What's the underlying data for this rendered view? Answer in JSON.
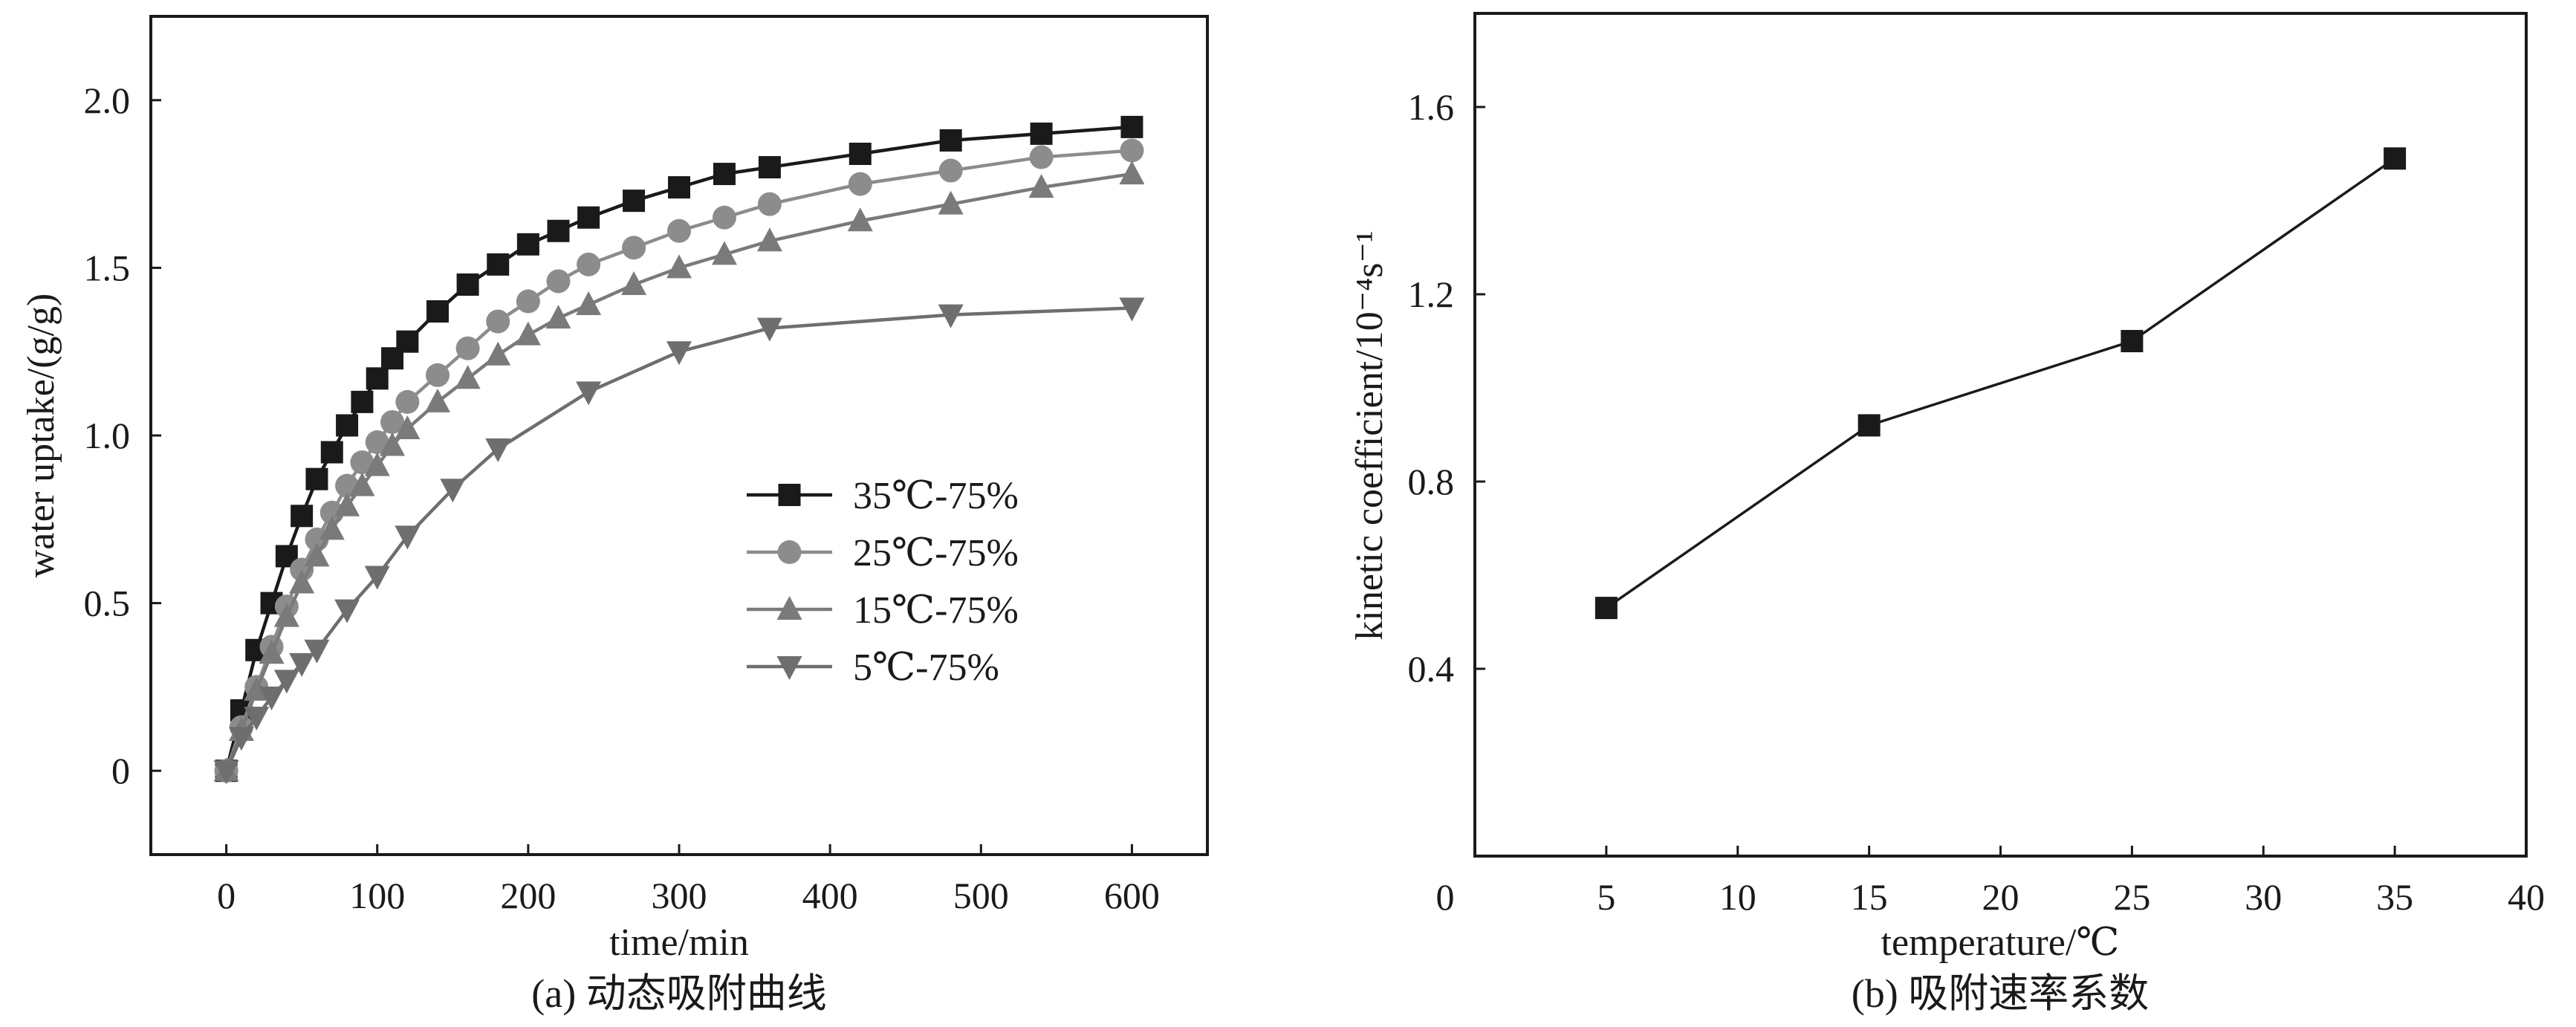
{
  "chart_data": [
    {
      "type": "line",
      "caption": "(a) 动态吸附曲线",
      "xlabel": "time/min",
      "ylabel": "water uptake/(g/g)",
      "xlim": [
        -50,
        650
      ],
      "ylim": [
        -0.25,
        2.25
      ],
      "xticks": [
        0,
        100,
        200,
        300,
        400,
        500,
        600
      ],
      "yticks": [
        0,
        0.5,
        1.0,
        1.5,
        2.0
      ],
      "ytick_labels": [
        "0",
        "0.5",
        "1.0",
        "1.5",
        "2.0"
      ],
      "legend_position": "center-right",
      "series": [
        {
          "name": "35℃-75%",
          "marker": "square",
          "color": "#1a1a1a",
          "x": [
            0,
            10,
            20,
            30,
            40,
            50,
            60,
            70,
            80,
            90,
            100,
            110,
            120,
            140,
            160,
            180,
            200,
            220,
            240,
            270,
            300,
            330,
            360,
            420,
            480,
            540,
            600
          ],
          "y": [
            0,
            0.18,
            0.36,
            0.5,
            0.64,
            0.76,
            0.87,
            0.95,
            1.03,
            1.1,
            1.17,
            1.23,
            1.28,
            1.37,
            1.45,
            1.51,
            1.57,
            1.61,
            1.65,
            1.7,
            1.74,
            1.78,
            1.8,
            1.84,
            1.88,
            1.9,
            1.92
          ]
        },
        {
          "name": "25℃-75%",
          "marker": "circle",
          "color": "#8c8c8c",
          "x": [
            0,
            10,
            20,
            30,
            40,
            50,
            60,
            70,
            80,
            90,
            100,
            110,
            120,
            140,
            160,
            180,
            200,
            220,
            240,
            270,
            300,
            330,
            360,
            420,
            480,
            540,
            600
          ],
          "y": [
            0,
            0.13,
            0.25,
            0.37,
            0.49,
            0.6,
            0.69,
            0.77,
            0.85,
            0.92,
            0.98,
            1.04,
            1.1,
            1.18,
            1.26,
            1.34,
            1.4,
            1.46,
            1.51,
            1.56,
            1.61,
            1.65,
            1.69,
            1.75,
            1.79,
            1.83,
            1.85
          ]
        },
        {
          "name": "15℃-75%",
          "marker": "triangle-up",
          "color": "#7a7a7a",
          "x": [
            0,
            10,
            20,
            30,
            40,
            50,
            60,
            70,
            80,
            90,
            100,
            110,
            120,
            140,
            160,
            180,
            200,
            220,
            240,
            270,
            300,
            330,
            360,
            420,
            480,
            540,
            600
          ],
          "y": [
            0,
            0.12,
            0.24,
            0.35,
            0.46,
            0.56,
            0.64,
            0.72,
            0.79,
            0.85,
            0.91,
            0.97,
            1.02,
            1.1,
            1.17,
            1.24,
            1.3,
            1.35,
            1.39,
            1.45,
            1.5,
            1.54,
            1.58,
            1.64,
            1.69,
            1.74,
            1.78
          ]
        },
        {
          "name": "5℃-75%",
          "marker": "triangle-down",
          "color": "#6e6e6e",
          "x": [
            0,
            10,
            20,
            30,
            40,
            50,
            60,
            80,
            100,
            120,
            150,
            180,
            240,
            300,
            360,
            480,
            600
          ],
          "y": [
            0,
            0.1,
            0.16,
            0.22,
            0.27,
            0.32,
            0.36,
            0.48,
            0.58,
            0.7,
            0.84,
            0.96,
            1.13,
            1.25,
            1.32,
            1.36,
            1.38
          ]
        }
      ]
    },
    {
      "type": "line",
      "caption": "(b) 吸附速率系数",
      "xlabel": "temperature/℃",
      "ylabel": "kinetic coefficient/10⁻⁴s⁻¹",
      "xlim": [
        0,
        40
      ],
      "ylim": [
        0,
        1.8
      ],
      "xticks": [
        0,
        5,
        10,
        15,
        20,
        25,
        30,
        35,
        40
      ],
      "yticks": [
        0.4,
        0.8,
        1.2,
        1.6
      ],
      "ytick_labels": [
        "0.4",
        "0.8",
        "1.2",
        "1.6"
      ],
      "series": [
        {
          "marker": "square",
          "color": "#1a1a1a",
          "x": [
            5,
            15,
            25,
            35
          ],
          "y": [
            0.53,
            0.92,
            1.1,
            1.49
          ]
        }
      ]
    }
  ]
}
